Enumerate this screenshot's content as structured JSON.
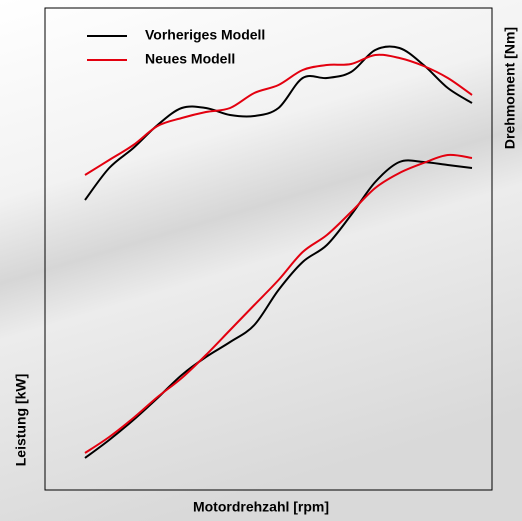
{
  "chart_data": {
    "type": "line",
    "xlabel": "Motordrehzahl  [rpm]",
    "ylabel": "Leistung [kW]",
    "y2label": "Drehmoment [Nm]",
    "categories": [
      null,
      null,
      null,
      null,
      null,
      null,
      null,
      null,
      null,
      null,
      null,
      null,
      null,
      null,
      null,
      null,
      null
    ],
    "ylim": [
      0,
      482
    ],
    "y2lim": [
      0,
      482
    ],
    "legend": "upper left",
    "series": [
      {
        "name": "Vorheriges Modell",
        "color": "#000000",
        "values": [
          32,
          50,
          70,
          92,
          115,
          133,
          148,
          165,
          200,
          228,
          245,
          275,
          308,
          328,
          328,
          325,
          322
        ],
        "y2_values": [
          290,
          322,
          342,
          365,
          382,
          382,
          375,
          374,
          382,
          412,
          412,
          418,
          440,
          442,
          425,
          402,
          387
        ]
      },
      {
        "name": "Neues Modell",
        "color": "#e3000f",
        "values": [
          37,
          53,
          72,
          93,
          112,
          135,
          160,
          185,
          210,
          238,
          255,
          278,
          302,
          317,
          327,
          335,
          332
        ],
        "y2_values": [
          315,
          330,
          345,
          364,
          372,
          378,
          382,
          397,
          405,
          420,
          425,
          426,
          435,
          432,
          424,
          412,
          395
        ]
      }
    ]
  }
}
